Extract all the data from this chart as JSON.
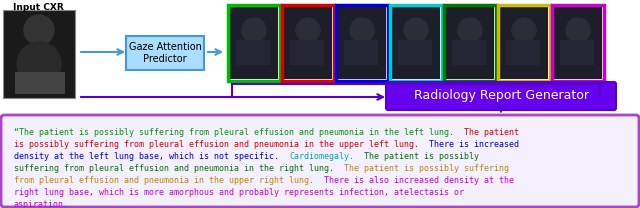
{
  "title": "Input CXR",
  "gaze_box_label": "Gaze Attention\nPredictor",
  "report_box_label": "Radiology Report Generator",
  "box_border_colors": [
    "#00bb00",
    "#dd0000",
    "#0000dd",
    "#00cccc",
    "#007700",
    "#ccbb00",
    "#cc00cc"
  ],
  "bg_color": "#ffffff",
  "report_bg": "#f5f0ff",
  "report_border": "#aa44cc",
  "arrow_blue": "#4499dd",
  "arrow_purple": "#5500cc",
  "gaze_box_bg": "#aaddff",
  "gaze_box_border": "#4499dd",
  "rg_box_color": "#6600ee",
  "xray_color": "#1a1a1a",
  "text_lines": [
    [
      [
        "“The patient is possibly suffering from pleural effusion and pneumonia in the left lung.  ",
        "#009900"
      ],
      [
        "The patient",
        "#dd0000"
      ]
    ],
    [
      [
        "is possibly suffering from pleural effusion and pneumonia in the upper left lung.  ",
        "#dd0000"
      ],
      [
        "There is increased",
        "#0000dd"
      ]
    ],
    [
      [
        "density at the left lung base, which is not specific.  ",
        "#0000dd"
      ],
      [
        "Cardiomegaly.",
        "#00aaaa"
      ],
      [
        "  The patient is possibly",
        "#007700"
      ]
    ],
    [
      [
        "suffering from pleural effusion and pneumonia in the right lung.  ",
        "#007700"
      ],
      [
        "The patient is possibly suffering",
        "#bb8800"
      ]
    ],
    [
      [
        "from pleural effusion and pneumonia in the upper right lung.  ",
        "#bb8800"
      ],
      [
        "There is also increased density at the",
        "#cc00cc"
      ]
    ],
    [
      [
        "right lung base, which is more amorphous and probably represents infection, atelectasis or",
        "#cc00cc"
      ]
    ],
    [
      [
        "aspiration.",
        "#cc00cc"
      ]
    ]
  ]
}
